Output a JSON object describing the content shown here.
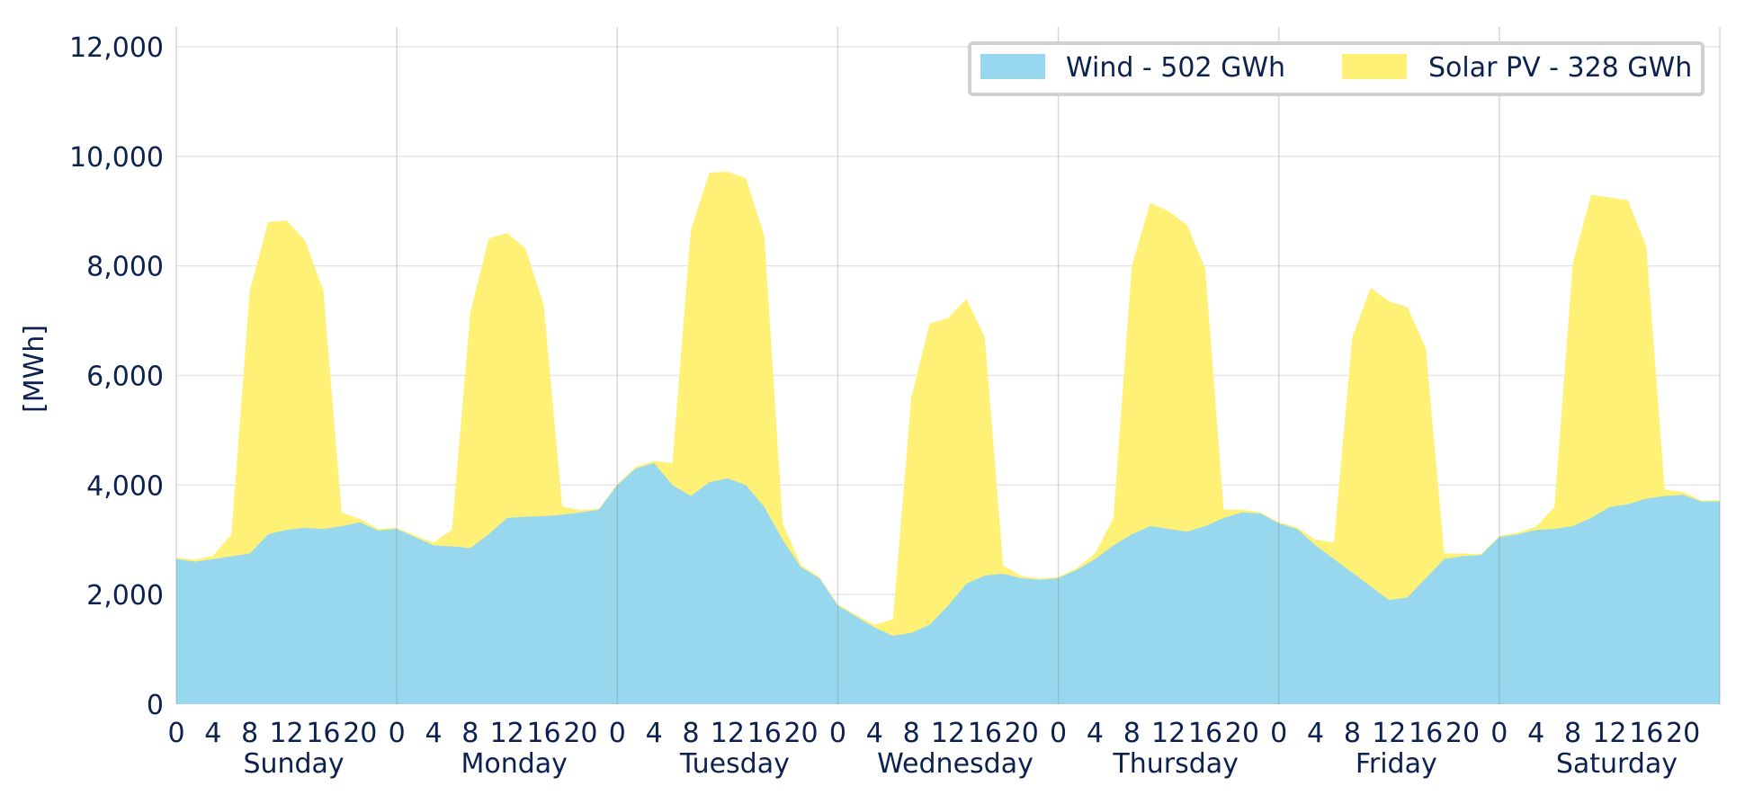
{
  "chart_data": {
    "type": "area",
    "stacked": true,
    "ylabel": "[MWh]",
    "ylim": [
      0,
      12000
    ],
    "yticks": [
      0,
      2000,
      4000,
      6000,
      8000,
      10000,
      12000
    ],
    "ytick_labels": [
      "0",
      "2,000",
      "4,000",
      "6,000",
      "8,000",
      "10,000",
      "12,000"
    ],
    "hour_ticks": [
      0,
      4,
      8,
      12,
      16,
      20
    ],
    "hour_tick_labels": [
      "0",
      "4",
      "8",
      "12",
      "16",
      "20"
    ],
    "days": [
      "Sunday",
      "Monday",
      "Tuesday",
      "Wednesday",
      "Thursday",
      "Friday",
      "Saturday"
    ],
    "grid": true,
    "legend_position": "top-right",
    "x_hours": [
      0,
      2,
      4,
      6,
      8,
      10,
      12,
      14,
      16,
      18,
      20,
      22
    ],
    "series": [
      {
        "name": "Wind - 502 GWh",
        "color": "#98d8ee",
        "values": [
          [
            2650,
            2600,
            2650,
            2700,
            2750,
            3100,
            3180,
            3220,
            3200,
            3250,
            3320,
            3170
          ],
          [
            3200,
            3050,
            2900,
            2880,
            2850,
            3100,
            3400,
            3420,
            3430,
            3460,
            3500,
            3550
          ],
          [
            4000,
            4300,
            4400,
            4000,
            3800,
            4050,
            4120,
            4000,
            3600,
            3000,
            2500,
            2300
          ],
          [
            1800,
            1600,
            1400,
            1250,
            1300,
            1450,
            1800,
            2200,
            2350,
            2380,
            2300,
            2270
          ],
          [
            2300,
            2450,
            2650,
            2900,
            3100,
            3250,
            3200,
            3150,
            3250,
            3400,
            3500,
            3480
          ],
          [
            3300,
            3200,
            2900,
            2650,
            2400,
            2150,
            1900,
            1950,
            2300,
            2650,
            2700,
            2720
          ],
          [
            3050,
            3100,
            3180,
            3200,
            3250,
            3400,
            3600,
            3650,
            3750,
            3800,
            3820,
            3700
          ]
        ]
      },
      {
        "name": "Solar PV - 328 GWh",
        "color": "#fff176",
        "values": [
          [
            20,
            40,
            60,
            400,
            4800,
            5700,
            5650,
            5250,
            4350,
            250,
            60,
            30
          ],
          [
            20,
            30,
            50,
            300,
            4300,
            5400,
            5200,
            4900,
            3850,
            150,
            40,
            20
          ],
          [
            20,
            30,
            40,
            400,
            4850,
            5650,
            5600,
            5600,
            4950,
            300,
            40,
            20
          ],
          [
            20,
            30,
            50,
            300,
            4300,
            5500,
            5250,
            5200,
            4350,
            150,
            40,
            20
          ],
          [
            20,
            30,
            100,
            500,
            4900,
            5900,
            5800,
            5600,
            4700,
            150,
            50,
            20
          ],
          [
            20,
            30,
            100,
            300,
            4300,
            5450,
            5450,
            5300,
            4200,
            100,
            50,
            20
          ],
          [
            20,
            30,
            60,
            400,
            4800,
            5900,
            5650,
            5550,
            4600,
            120,
            50,
            20
          ]
        ]
      }
    ]
  }
}
